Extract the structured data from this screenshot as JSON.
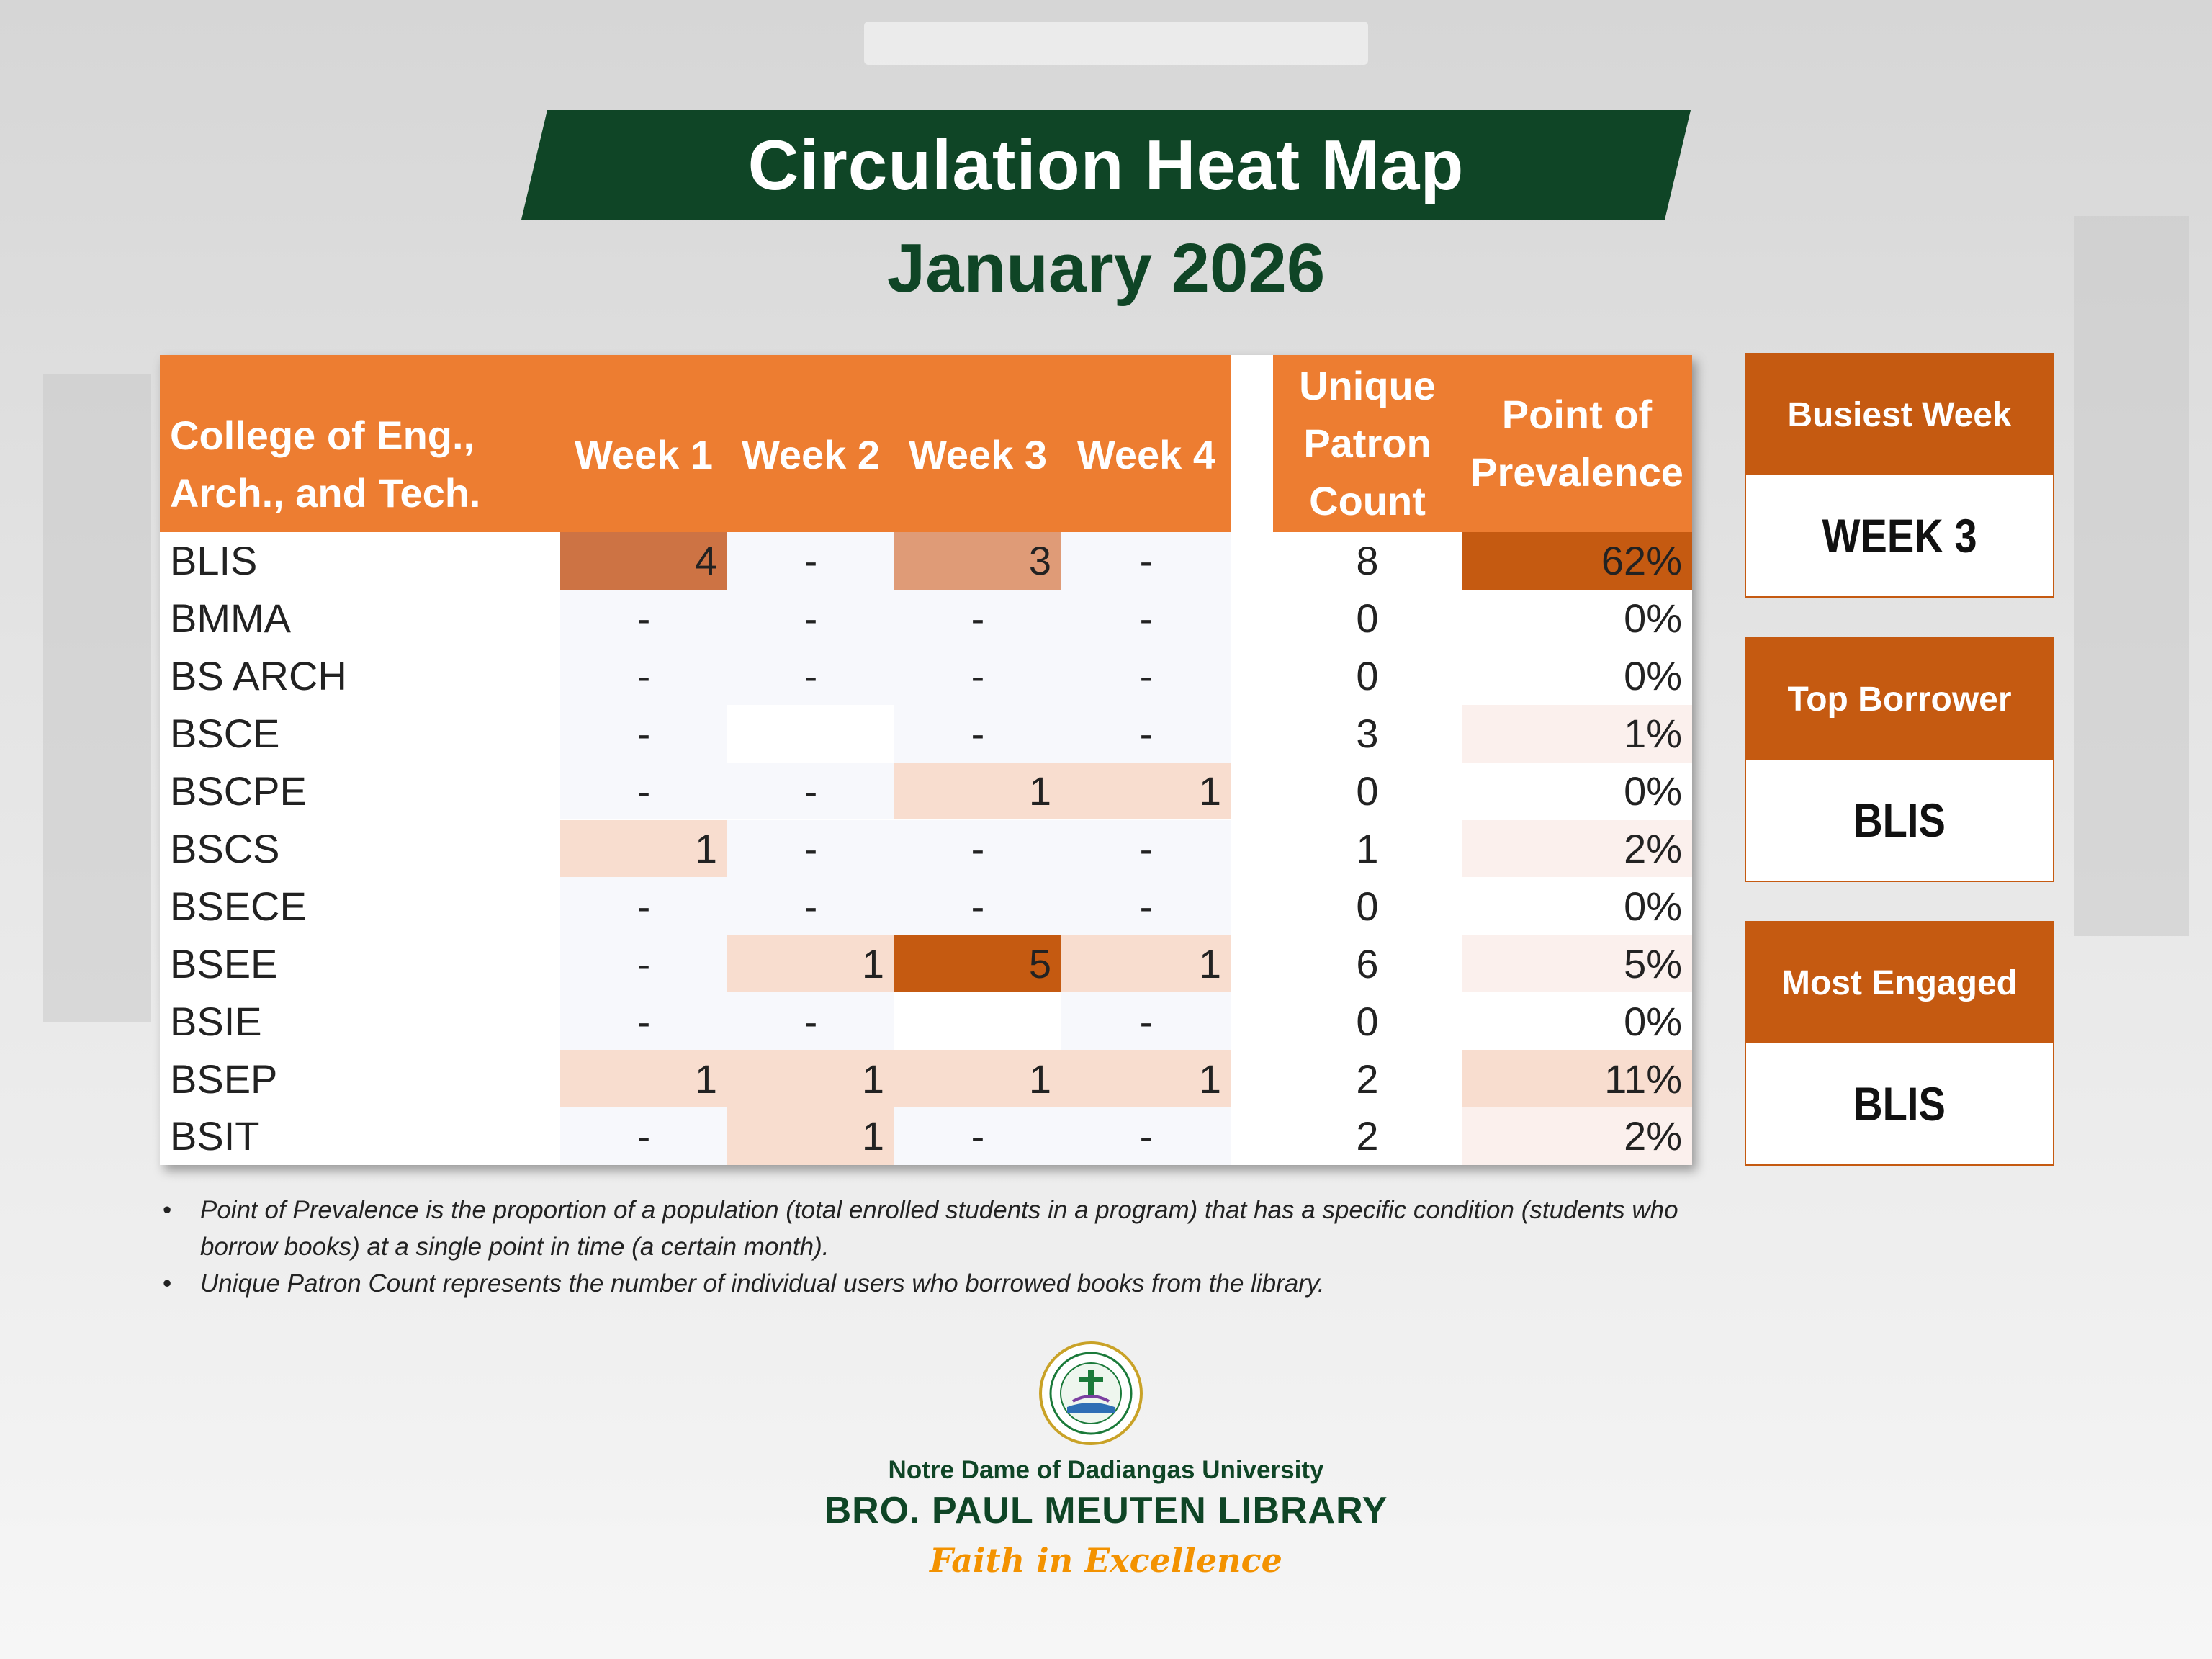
{
  "title": "Circulation Heat Map",
  "subtitle": "January 2026",
  "table": {
    "headers": {
      "college": [
        "College of Eng.,",
        "Arch., and Tech."
      ],
      "weeks": [
        "Week 1",
        "Week 2",
        "Week 3",
        "Week 4"
      ],
      "unique": [
        "Unique",
        "Patron",
        "Count"
      ],
      "prevalence": [
        "Point of",
        "Prevalence"
      ]
    },
    "rows": [
      {
        "program": "BLIS",
        "weeks": [
          "4",
          "-",
          "3",
          "-"
        ],
        "unique": "8",
        "prevalence": "62%"
      },
      {
        "program": "BMMA",
        "weeks": [
          "-",
          "-",
          "-",
          "-"
        ],
        "unique": "0",
        "prevalence": "0%"
      },
      {
        "program": "BS ARCH",
        "weeks": [
          "-",
          "-",
          "-",
          "-"
        ],
        "unique": "0",
        "prevalence": "0%"
      },
      {
        "program": "BSCE",
        "weeks": [
          "-",
          "",
          "-",
          "-"
        ],
        "unique": "3",
        "prevalence": "1%"
      },
      {
        "program": "BSCPE",
        "weeks": [
          "-",
          "-",
          "1",
          "1"
        ],
        "unique": "0",
        "prevalence": "0%"
      },
      {
        "program": "BSCS",
        "weeks": [
          "1",
          "-",
          "-",
          "-"
        ],
        "unique": "1",
        "prevalence": "2%"
      },
      {
        "program": "BSECE",
        "weeks": [
          "-",
          "-",
          "-",
          "-"
        ],
        "unique": "0",
        "prevalence": "0%"
      },
      {
        "program": "BSEE",
        "weeks": [
          "-",
          "1",
          "5",
          "1"
        ],
        "unique": "6",
        "prevalence": "5%"
      },
      {
        "program": "BSIE",
        "weeks": [
          "-",
          "-",
          "",
          "-"
        ],
        "unique": "0",
        "prevalence": "0%"
      },
      {
        "program": "BSEP",
        "weeks": [
          "1",
          "1",
          "1",
          "1"
        ],
        "unique": "2",
        "prevalence": "11%"
      },
      {
        "program": "BSIT",
        "weeks": [
          "-",
          "1",
          "-",
          "-"
        ],
        "unique": "2",
        "prevalence": "2%"
      }
    ],
    "colors": {
      "header": "#ed7d31",
      "empty": "#f7f8fc",
      "blank": "#ffffff",
      "level1": "#f8ddcf",
      "level3": "#df9b77",
      "level4": "#cd7344",
      "level5": "#c55a11",
      "prev_max": "#c55a11",
      "prev_low": "#fbf0ed"
    }
  },
  "panels": [
    {
      "label": "Busiest Week",
      "value": "WEEK 3"
    },
    {
      "label": "Top Borrower",
      "value": "BLIS"
    },
    {
      "label": "Most Engaged",
      "value": "BLIS"
    }
  ],
  "notes": [
    "Point of Prevalence is the proportion of a population (total enrolled students in a program) that has a specific condition (students who borrow books) at a single point in time (a certain month).",
    "Unique Patron Count represents the number of individual users who borrowed books from the library."
  ],
  "footer": {
    "university": "Notre Dame of Dadiangas University",
    "library": "BRO. PAUL MEUTEN LIBRARY",
    "motto": "Faith in Excellence"
  },
  "brand_colors": {
    "green": "#0f4526",
    "orange": "#c55a11",
    "gold": "#f39200"
  }
}
